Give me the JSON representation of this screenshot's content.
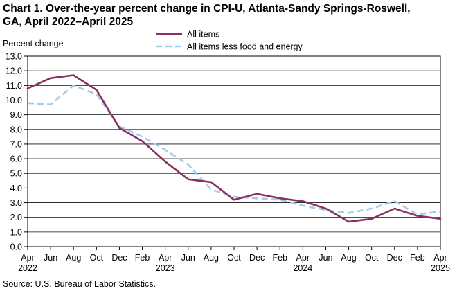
{
  "chart_data": {
    "type": "line",
    "title_line1": "Chart 1. Over-the-year percent change in CPI-U, Atlanta-Sandy Springs-Roswell,",
    "title_line2": "GA, April 2022–April 2025",
    "ylabel": "Percent change",
    "ylim": [
      0,
      13
    ],
    "y_ticks": [
      "0.0",
      "1.0",
      "2.0",
      "3.0",
      "4.0",
      "5.0",
      "6.0",
      "7.0",
      "8.0",
      "9.0",
      "10.0",
      "11.0",
      "12.0",
      "13.0"
    ],
    "categories": [
      "Apr",
      "Jun",
      "Aug",
      "Oct",
      "Dec",
      "Feb",
      "Apr",
      "Jun",
      "Aug",
      "Oct",
      "Dec",
      "Feb",
      "Apr",
      "Jun",
      "Aug",
      "Oct",
      "Dec",
      "Feb",
      "Apr"
    ],
    "years": [
      {
        "index": 0,
        "label": "2022"
      },
      {
        "index": 6,
        "label": "2023"
      },
      {
        "index": 12,
        "label": "2024"
      },
      {
        "index": 18,
        "label": "2025"
      }
    ],
    "series": [
      {
        "name": "All items",
        "color": "#8b2f5e",
        "dashed": false,
        "values": [
          10.8,
          11.5,
          11.7,
          10.7,
          8.1,
          7.2,
          5.8,
          4.6,
          4.4,
          3.2,
          3.6,
          3.3,
          3.1,
          2.6,
          1.7,
          1.9,
          2.6,
          2.1,
          1.9
        ]
      },
      {
        "name": "All items less food and energy",
        "color": "#9fcbee",
        "dashed": true,
        "values": [
          9.8,
          9.7,
          11.0,
          10.4,
          8.2,
          7.5,
          6.6,
          5.6,
          3.9,
          3.4,
          3.3,
          3.2,
          2.8,
          2.5,
          2.3,
          2.6,
          3.1,
          2.2,
          2.4
        ]
      }
    ],
    "grid": true,
    "legend_position": "top-center"
  },
  "source": "Source: U.S. Bureau of Labor Statistics."
}
